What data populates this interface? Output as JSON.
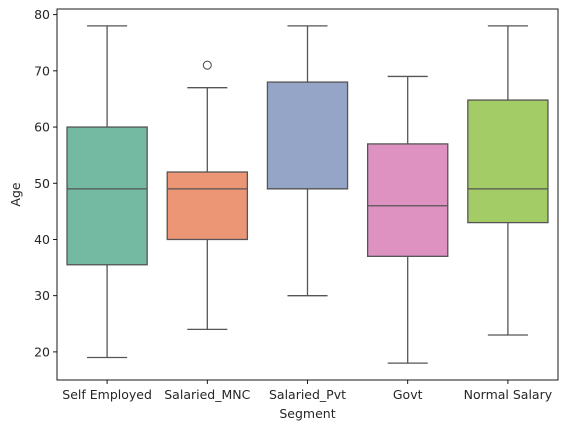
{
  "chart_data": {
    "type": "box",
    "xlabel": "Segment",
    "ylabel": "Age",
    "ylim": [
      15,
      81
    ],
    "yticks": [
      20,
      30,
      40,
      50,
      60,
      70,
      80
    ],
    "grid": false,
    "categories": [
      "Self Employed",
      "Salaried_MNC",
      "Salaried_Pvt",
      "Govt",
      "Normal Salary"
    ],
    "boxes": [
      {
        "category": "Self Employed",
        "whisker_low": 19,
        "q1": 35.5,
        "median": 49,
        "q3": 60,
        "whisker_high": 78,
        "outliers": [],
        "color": "#74b9a2"
      },
      {
        "category": "Salaried_MNC",
        "whisker_low": 24,
        "q1": 40,
        "median": 49,
        "q3": 52,
        "whisker_high": 67,
        "outliers": [
          71
        ],
        "color": "#ec9676"
      },
      {
        "category": "Salaried_Pvt",
        "whisker_low": 30,
        "q1": 49,
        "median": 49,
        "q3": 68,
        "whisker_high": 78,
        "outliers": [],
        "color": "#95a5c7"
      },
      {
        "category": "Govt",
        "whisker_low": 18,
        "q1": 37,
        "median": 46,
        "q3": 57,
        "whisker_high": 69,
        "outliers": [],
        "color": "#dd92c2"
      },
      {
        "category": "Normal Salary",
        "whisker_low": 23,
        "q1": 43,
        "median": 49,
        "q3": 64.8,
        "whisker_high": 78,
        "outliers": [],
        "color": "#a4cc66"
      }
    ]
  }
}
